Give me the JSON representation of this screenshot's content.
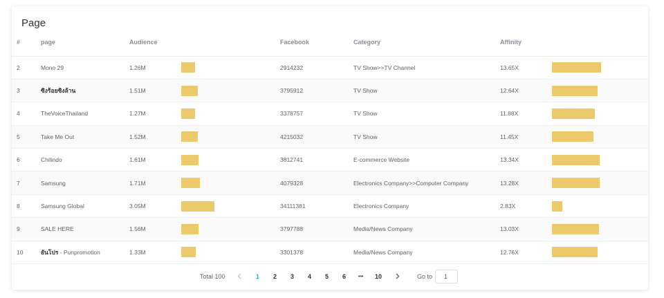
{
  "card": {
    "title": "Page"
  },
  "columns": {
    "num": "#",
    "page": "page",
    "audience": "Audience",
    "facebook": "Facebook",
    "category": "Category",
    "affinity": "Affinity"
  },
  "rows": [
    {
      "num": "2",
      "page": "Mono 29",
      "page_bold": "",
      "page_rest": "",
      "audience": "1.26M",
      "audience_bar": 1.26,
      "facebook": "2914232",
      "category": "TV Show>>TV Channel",
      "affinity": "13.65X",
      "affinity_bar": 13.65
    },
    {
      "num": "3",
      "page": "",
      "page_bold": "ซิงร้อยซิงล้าน",
      "page_rest": "",
      "audience": "1.51M",
      "audience_bar": 1.51,
      "facebook": "3795912",
      "category": "TV Show",
      "affinity": "12.64X",
      "affinity_bar": 12.64
    },
    {
      "num": "4",
      "page": "TheVoiceThailand",
      "page_bold": "",
      "page_rest": "",
      "audience": "1.27M",
      "audience_bar": 1.27,
      "facebook": "3378757",
      "category": "TV Show",
      "affinity": "11.88X",
      "affinity_bar": 11.88
    },
    {
      "num": "5",
      "page": "Take Me Out",
      "page_bold": "",
      "page_rest": "",
      "audience": "1.52M",
      "audience_bar": 1.52,
      "facebook": "4215032",
      "category": "TV Show",
      "affinity": "11.45X",
      "affinity_bar": 11.45
    },
    {
      "num": "6",
      "page": "Chilindo",
      "page_bold": "",
      "page_rest": "",
      "audience": "1.61M",
      "audience_bar": 1.61,
      "facebook": "3812741",
      "category": "E-commerce Website",
      "affinity": "13.34X",
      "affinity_bar": 13.34
    },
    {
      "num": "7",
      "page": "Samsung",
      "page_bold": "",
      "page_rest": "",
      "audience": "1.71M",
      "audience_bar": 1.71,
      "facebook": "4079328",
      "category": "Electronics Company>>Computer Company",
      "affinity": "13.28X",
      "affinity_bar": 13.28
    },
    {
      "num": "8",
      "page": "Samsung Global",
      "page_bold": "",
      "page_rest": "",
      "audience": "3.05M",
      "audience_bar": 3.05,
      "facebook": "34111381",
      "category": "Electronics Company",
      "affinity": "2.83X",
      "affinity_bar": 2.83
    },
    {
      "num": "9",
      "page": "SALE HERE",
      "page_bold": "",
      "page_rest": "",
      "audience": "1.56M",
      "audience_bar": 1.56,
      "facebook": "3797788",
      "category": "Media/News Company",
      "affinity": "13.03X",
      "affinity_bar": 13.03
    },
    {
      "num": "10",
      "page": "",
      "page_bold": "ยันโปร",
      "page_rest": " - Punpromotion",
      "audience": "1.33M",
      "audience_bar": 1.33,
      "facebook": "3301378",
      "category": "Media/News Company",
      "affinity": "12.76X",
      "affinity_bar": 12.76
    }
  ],
  "scales": {
    "audience_max": 3.05,
    "affinity_max": 13.65
  },
  "colors": {
    "bar": "#ecc96a",
    "active_page": "#1fb6c9"
  },
  "pagination": {
    "total_label": "Total 100",
    "prev_icon": "chevron-left-icon",
    "next_icon": "chevron-right-icon",
    "pages": [
      "1",
      "2",
      "3",
      "4",
      "5",
      "6"
    ],
    "ellipsis": "•••",
    "last_page": "10",
    "active_page": "1",
    "goto_label": "Go to",
    "goto_value": "1"
  }
}
